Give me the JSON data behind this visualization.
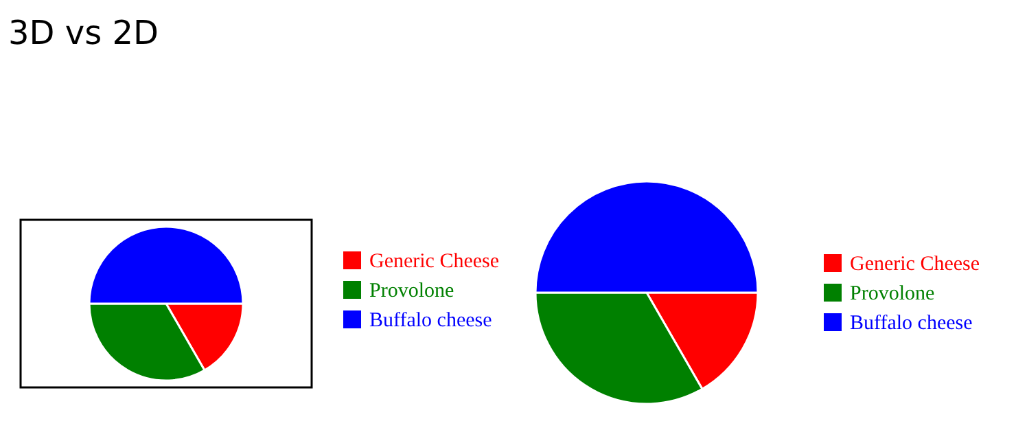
{
  "chart_data": [
    {
      "type": "pie",
      "title": "3D vs 2D",
      "categories": [
        "Generic Cheese",
        "Provolone",
        "Buffalo cheese"
      ],
      "values": [
        16.67,
        33.33,
        50
      ],
      "colors": [
        "#ff0000",
        "#008000",
        "#0000ff"
      ],
      "legend": "right"
    },
    {
      "type": "pie",
      "categories": [
        "Generic Cheese",
        "Provolone",
        "Buffalo cheese"
      ],
      "values": [
        16.67,
        33.33,
        50
      ],
      "colors": [
        "#ff0000",
        "#008000",
        "#0000ff"
      ],
      "legend": "right"
    }
  ]
}
